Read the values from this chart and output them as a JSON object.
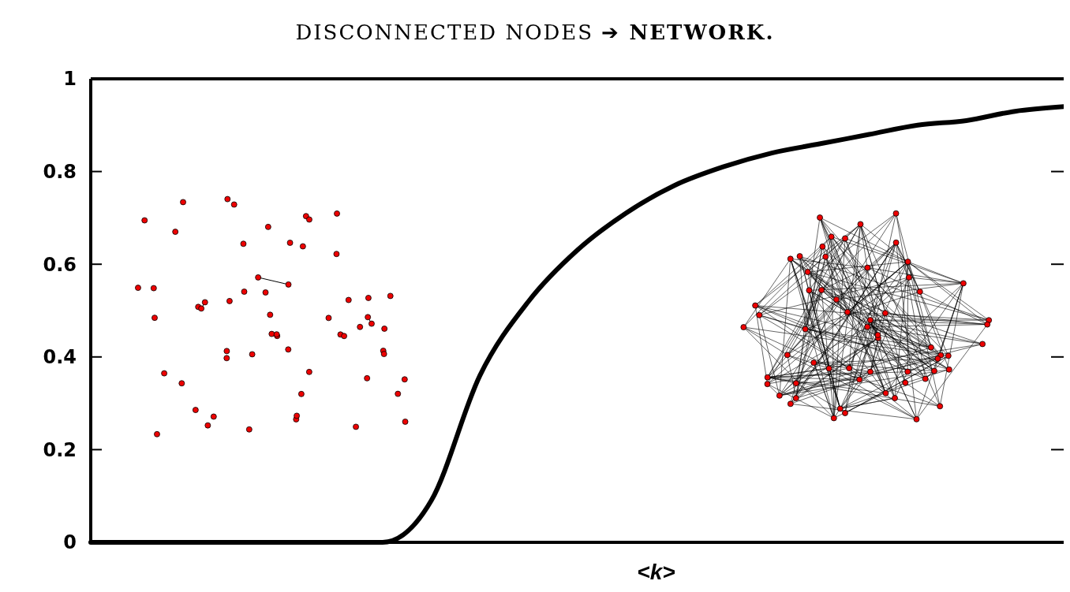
{
  "chart_data": {
    "type": "line",
    "title": "DISCONNECTED NODES ➔ NETWORK.",
    "xlabel": "<k>",
    "categories": [
      null,
      null,
      null,
      null,
      null,
      null,
      null,
      null,
      null,
      null,
      null,
      null,
      null,
      null,
      null,
      null,
      null,
      null,
      null,
      null,
      null
    ],
    "series": [
      {
        "color": "#000000",
        "values": [
          0,
          0,
          0,
          0,
          0,
          0,
          0,
          0.09,
          0.36,
          0.52,
          0.63,
          0.71,
          0.77,
          0.81,
          0.84,
          0.86,
          0.88,
          0.9,
          0.91,
          0.93,
          0.94
        ]
      }
    ],
    "ylim": [
      0,
      1
    ],
    "yticks": [
      0,
      0.2,
      0.4,
      0.6,
      0.8,
      1
    ],
    "grid": false,
    "marker": "none",
    "line_style": "solid"
  }
}
